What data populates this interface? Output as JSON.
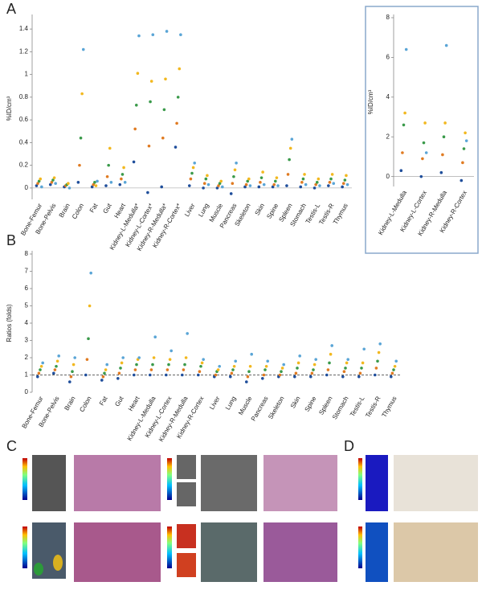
{
  "chart_data": [
    {
      "type": "strip",
      "panel_label": "A",
      "ylabel": "%ID/cm³",
      "categories": [
        "Bone-Femur",
        "Bone-Pelvis",
        "Brain",
        "Colon",
        "Fat",
        "Gut",
        "Heart",
        "Kidney-L-Medulla*",
        "Kidney-L-Cortex*",
        "Kidney-R-Medulla*",
        "Kidney-R-Cortex*",
        "Liver",
        "Lung",
        "Muscle",
        "Pancreas",
        "Skeleton",
        "Skin",
        "Spine",
        "Spleen",
        "Stomach",
        "Testis-L",
        "Testis-R",
        "Thymus"
      ],
      "values": [
        [
          0.02,
          0.04,
          0.06,
          0.08,
          0.01
        ],
        [
          0.03,
          0.05,
          0.07,
          0.09,
          0.04
        ],
        [
          0.01,
          0.02,
          0.03,
          0.04,
          0.0
        ],
        [
          0.05,
          0.2,
          0.44,
          0.83,
          1.22
        ],
        [
          0.01,
          0.03,
          0.05,
          0.02,
          0.06
        ],
        [
          0.02,
          0.1,
          0.2,
          0.35,
          0.05
        ],
        [
          0.03,
          0.08,
          0.12,
          0.18,
          0.05
        ],
        [
          0.23,
          0.52,
          0.73,
          1.01,
          1.34
        ],
        [
          -0.04,
          0.37,
          0.76,
          0.94,
          1.35
        ],
        [
          0.01,
          0.44,
          0.69,
          0.96,
          1.38
        ],
        [
          0.36,
          0.57,
          0.8,
          1.05,
          1.35
        ],
        [
          0.02,
          0.08,
          0.13,
          0.18,
          0.22
        ],
        [
          0.0,
          0.04,
          0.08,
          0.11,
          0.03
        ],
        [
          0.0,
          0.02,
          0.04,
          0.06,
          0.01
        ],
        [
          -0.05,
          0.04,
          0.1,
          0.16,
          0.22
        ],
        [
          0.01,
          0.03,
          0.06,
          0.08,
          0.02
        ],
        [
          0.01,
          0.05,
          0.09,
          0.14,
          0.03
        ],
        [
          0.01,
          0.03,
          0.06,
          0.09,
          0.02
        ],
        [
          0.02,
          0.12,
          0.25,
          0.35,
          0.43
        ],
        [
          0.01,
          0.05,
          0.08,
          0.12,
          0.03
        ],
        [
          0.0,
          0.03,
          0.05,
          0.08,
          0.02
        ],
        [
          0.02,
          0.05,
          0.08,
          0.12,
          0.04
        ],
        [
          0.01,
          0.04,
          0.07,
          0.11,
          0.03
        ]
      ],
      "point_colors": [
        "#1f4e9b",
        "#e07b22",
        "#3a9a4a",
        "#f2b81f",
        "#5aa5d6"
      ],
      "ylim": [
        -0.1,
        1.5
      ],
      "yticks": [
        0,
        0.2,
        0.4,
        0.6,
        0.8,
        1,
        1.2,
        1.4
      ]
    },
    {
      "type": "strip",
      "ylabel": "%ID/cm³",
      "categories": [
        "Kidney-L-Medulla",
        "Kidney-L-Cortex",
        "Kidney-R-Medulla",
        "Kidney-R-Cortex"
      ],
      "values": [
        [
          0.3,
          1.2,
          2.6,
          3.2,
          6.4
        ],
        [
          0,
          0.9,
          1.7,
          2.7,
          1.2
        ],
        [
          0.2,
          1.1,
          2.0,
          2.7,
          6.6
        ],
        [
          -0.2,
          0.7,
          1.4,
          2.2,
          1.8
        ]
      ],
      "point_colors": [
        "#1f4e9b",
        "#e07b22",
        "#3a9a4a",
        "#f2b81f",
        "#5aa5d6"
      ],
      "ylim": [
        -0.5,
        8
      ],
      "yticks": [
        0,
        2,
        4,
        6,
        8
      ]
    },
    {
      "type": "strip",
      "panel_label": "B",
      "ylabel": "Ratios (folds)",
      "categories": [
        "Bone-Femur",
        "Bone-Pelvis",
        "Brain",
        "Colon",
        "Fat",
        "Gut",
        "Heart",
        "Kidney-L-Medulla",
        "Kidney-L-Cortex",
        "Kidney-R-Medulla",
        "Kidney-R-Cortex",
        "Liver",
        "Lung",
        "Muscle",
        "Pancreas",
        "Skeleton",
        "Skin",
        "Spine",
        "Spleen",
        "Stomach",
        "Testis-L",
        "Testis-R",
        "Thymus"
      ],
      "values": [
        [
          0.9,
          1.1,
          1.3,
          1.5,
          1.7
        ],
        [
          1.1,
          1.3,
          1.5,
          1.8,
          2.1
        ],
        [
          0.6,
          0.9,
          1.2,
          1.6,
          2.0
        ],
        [
          1.0,
          1.9,
          3.1,
          5.0,
          6.9
        ],
        [
          0.7,
          0.9,
          1.1,
          1.3,
          1.6
        ],
        [
          0.8,
          1.1,
          1.4,
          1.7,
          2.0
        ],
        [
          1.0,
          1.3,
          1.6,
          1.9,
          2.0
        ],
        [
          1.0,
          1.3,
          1.6,
          2.0,
          3.2
        ],
        [
          1.0,
          1.3,
          1.6,
          1.9,
          2.4
        ],
        [
          1.0,
          1.3,
          1.6,
          2.0,
          3.4
        ],
        [
          1.0,
          1.2,
          1.5,
          1.7,
          1.9
        ],
        [
          0.9,
          1.0,
          1.2,
          1.3,
          1.5
        ],
        [
          0.9,
          1.1,
          1.3,
          1.5,
          1.8
        ],
        [
          0.6,
          0.9,
          1.2,
          1.5,
          2.2
        ],
        [
          0.8,
          1.0,
          1.3,
          1.5,
          1.8
        ],
        [
          0.9,
          1.0,
          1.2,
          1.4,
          1.6
        ],
        [
          0.9,
          1.1,
          1.4,
          1.7,
          2.1
        ],
        [
          0.9,
          1.1,
          1.3,
          1.6,
          1.9
        ],
        [
          1.0,
          1.3,
          1.7,
          2.2,
          2.7
        ],
        [
          0.9,
          1.2,
          1.4,
          1.7,
          1.9
        ],
        [
          0.9,
          1.1,
          1.4,
          1.7,
          2.5
        ],
        [
          1.0,
          1.4,
          1.8,
          2.3,
          2.8
        ],
        [
          0.9,
          1.1,
          1.3,
          1.5,
          1.8
        ]
      ],
      "point_colors": [
        "#1f4e9b",
        "#e07b22",
        "#3a9a4a",
        "#f2b81f",
        "#5aa5d6"
      ],
      "ylim": [
        0,
        8
      ],
      "yticks": [
        0,
        1,
        2,
        3,
        4,
        5,
        6,
        7,
        8
      ],
      "reference_line": 1
    }
  ],
  "image_panels": [
    "C",
    "D"
  ]
}
